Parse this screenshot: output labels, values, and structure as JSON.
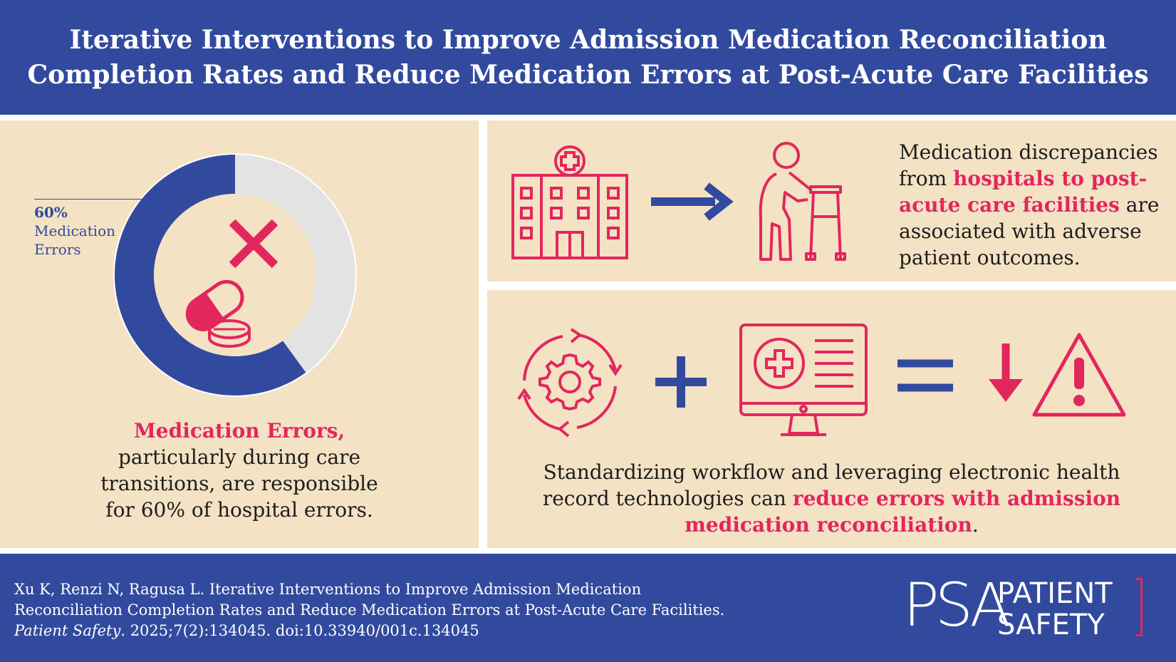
{
  "header": {
    "title_line1": "Iterative Interventions to Improve Admission Medication Reconciliation",
    "title_line2": "Completion Rates and Reduce Medication Errors at Post-Acute Care Facilities"
  },
  "left_panel": {
    "donut": {
      "percent_label": "60%",
      "series_label_line1": "Medication",
      "series_label_line2": "Errors",
      "value": 60,
      "colors": {
        "errors": "#324a9e",
        "remainder": "#e3e3e3",
        "center": "#f4e2c4"
      }
    },
    "caption": {
      "highlight": "Medication Errors,",
      "line2": "particularly during care",
      "line3": "transitions, are responsible",
      "line4": "for 60% of hospital errors."
    }
  },
  "top_right_panel": {
    "icons": [
      "hospital-icon",
      "arrow-right-icon",
      "patient-with-walker-icon"
    ],
    "text": {
      "line1": "Medication discrepancies",
      "from": "from ",
      "hl1": "hospitals to post-",
      "hl2": "acute care facilities",
      "are": " are",
      "line4": "associated with adverse",
      "line5": "patient outcomes."
    }
  },
  "bottom_right_panel": {
    "icons": [
      "workflow-gear-cycle-icon",
      "plus-icon",
      "ehr-monitor-icon",
      "equals-icon",
      "down-arrow-icon",
      "warning-icon"
    ],
    "text": {
      "line1": "Standardizing workflow and leveraging electronic health",
      "line2_pre": "record technologies can ",
      "hl1": "reduce errors with admission",
      "hl2": "medication reconciliation",
      "end": "."
    }
  },
  "footer": {
    "citation_line1": "Xu K, Renzi N, Ragusa L. Iterative Interventions to Improve Admission Medication",
    "citation_line2": "Reconciliation Completion Rates and Reduce Medication Errors at Post-Acute Care Facilities.",
    "journal": "Patient Safety",
    "citation_rest": ". 2025;7(2):134045. doi:10.33940/001c.134045",
    "logo": {
      "mark": "PSA",
      "word1": "PATIENT",
      "word2": "SAFETY"
    }
  },
  "colors": {
    "navy": "#324a9e",
    "accent": "#e2275d",
    "panel": "#f4e2c4"
  }
}
